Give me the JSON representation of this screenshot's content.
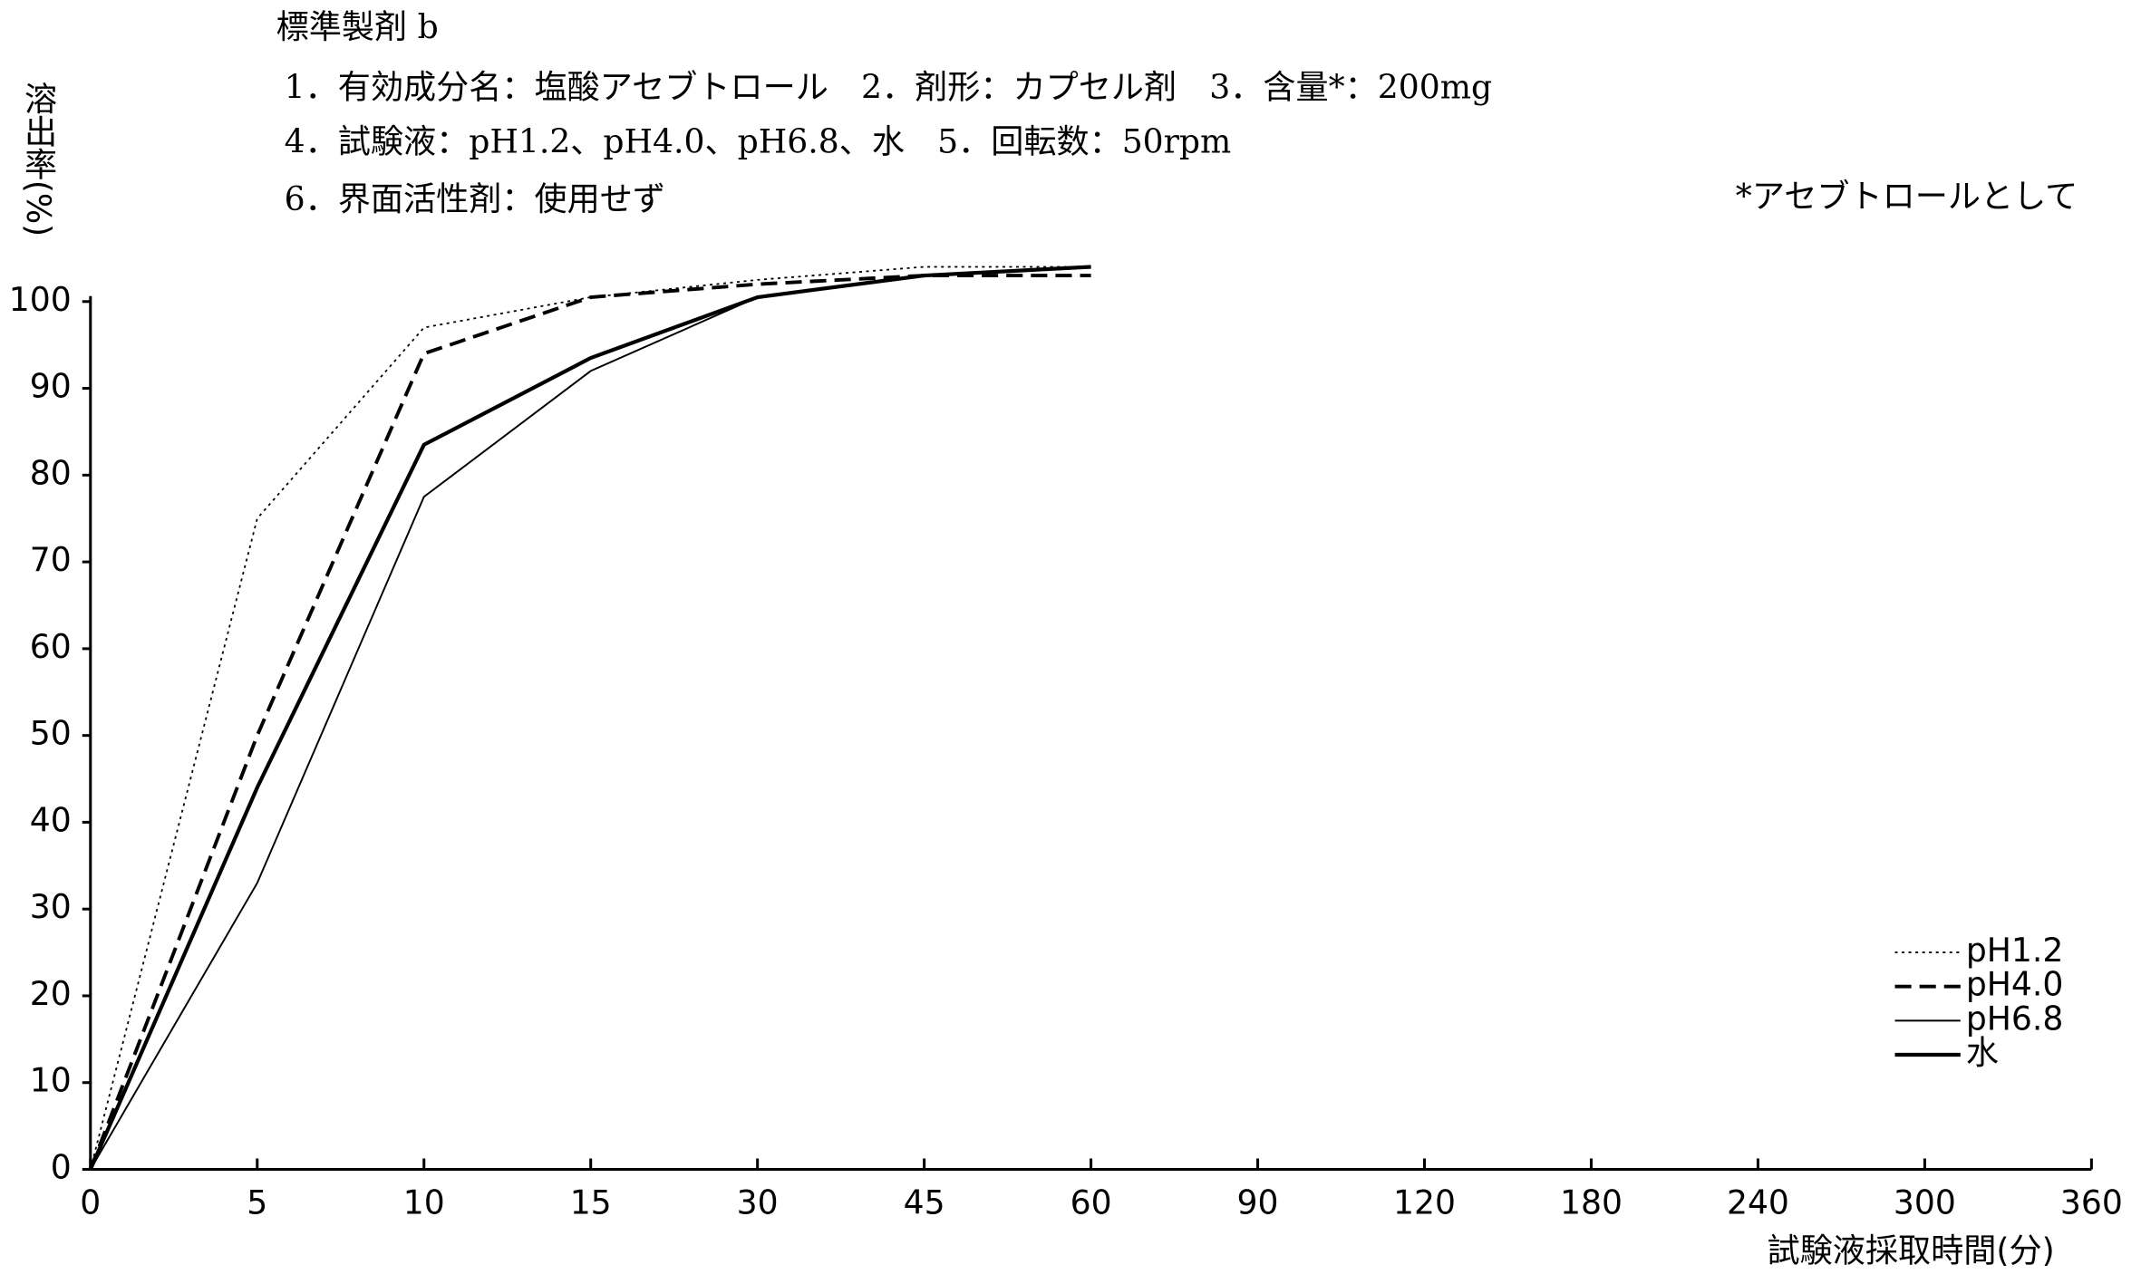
{
  "chart_data": {
    "type": "line",
    "title": "標準製剤 b",
    "subtitle_lines": [
      "1．有効成分名：塩酸アセブトロール　2．剤形：カプセル剤　3．含量*：200mg",
      "4．試験液：pH1.2、pH4.0、pH6.8、水　5．回転数：50rpm",
      "6．界面活性剤：使用せず"
    ],
    "annotation": "*アセブトロールとして",
    "y_label": "溶出率(%)",
    "x_label": "試験液採取時間(分)",
    "categories": [
      "0",
      "5",
      "10",
      "15",
      "30",
      "45",
      "60",
      "90",
      "120",
      "180",
      "240",
      "300",
      "360"
    ],
    "ylim": [
      0,
      100
    ],
    "yticks": [
      0,
      10,
      20,
      30,
      40,
      50,
      60,
      70,
      80,
      90,
      100
    ],
    "legend": "lower right",
    "series": [
      {
        "name": "pH1.2",
        "color": "#000000",
        "style": "dotted",
        "width": 1.2,
        "values": [
          0,
          75,
          97,
          100.5,
          102.5,
          104,
          104,
          null,
          null,
          null,
          null,
          null,
          null
        ]
      },
      {
        "name": "pH4.0",
        "color": "#000000",
        "style": "dashed",
        "width": 2.6,
        "values": [
          0,
          50,
          94,
          100.5,
          102,
          103,
          103,
          null,
          null,
          null,
          null,
          null,
          null
        ]
      },
      {
        "name": "pH6.8",
        "color": "#000000",
        "style": "solid",
        "width": 1.3,
        "values": [
          0,
          33,
          77.5,
          92,
          100.5,
          103,
          104,
          null,
          null,
          null,
          null,
          null,
          null
        ]
      },
      {
        "name": "水",
        "color": "#000000",
        "style": "solid",
        "width": 2.8,
        "values": [
          0,
          44,
          83.5,
          93.5,
          100.5,
          103,
          104,
          null,
          null,
          null,
          null,
          null,
          null
        ]
      }
    ]
  }
}
